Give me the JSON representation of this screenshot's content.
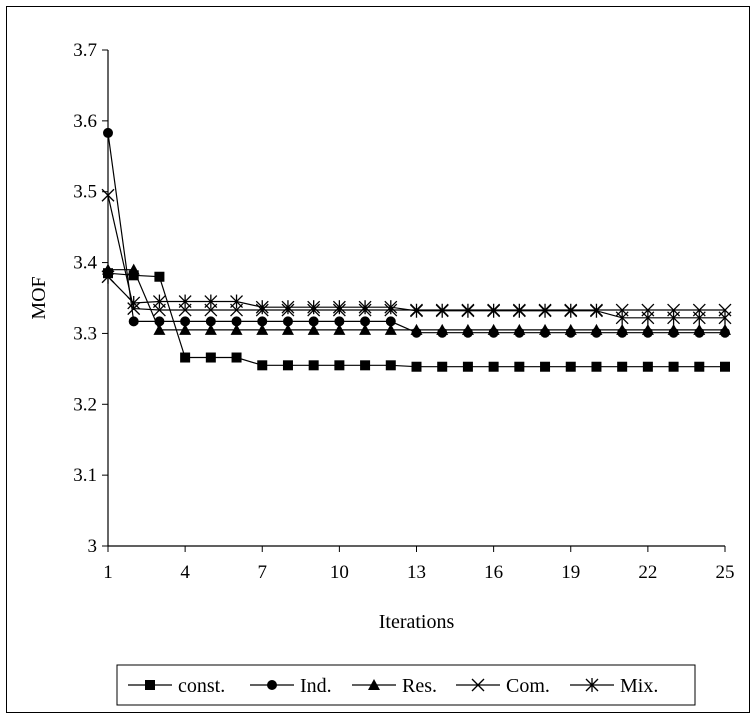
{
  "chart_data": {
    "type": "line",
    "xlabel": "Iterations",
    "ylabel": "MOF",
    "xlim": [
      1,
      25
    ],
    "ylim": [
      3.0,
      3.7
    ],
    "x_ticks": [
      "1",
      "4",
      "7",
      "10",
      "13",
      "16",
      "19",
      "22",
      "25"
    ],
    "y_ticks": [
      "3",
      "3.1",
      "3.2",
      "3.3",
      "3.4",
      "3.5",
      "3.6",
      "3.7"
    ],
    "grid": false,
    "legend_position": "bottom",
    "x": [
      1,
      2,
      3,
      4,
      5,
      6,
      7,
      8,
      9,
      10,
      11,
      12,
      13,
      14,
      15,
      16,
      17,
      18,
      19,
      20,
      21,
      22,
      23,
      24,
      25
    ],
    "series": [
      {
        "name": "const.",
        "marker": "square",
        "values": [
          3.385,
          3.382,
          3.38,
          3.266,
          3.266,
          3.266,
          3.255,
          3.255,
          3.255,
          3.255,
          3.255,
          3.255,
          3.253,
          3.253,
          3.253,
          3.253,
          3.253,
          3.253,
          3.253,
          3.253,
          3.253,
          3.253,
          3.253,
          3.253,
          3.253
        ]
      },
      {
        "name": "Ind.",
        "marker": "circle",
        "values": [
          3.583,
          3.317,
          3.317,
          3.317,
          3.317,
          3.317,
          3.317,
          3.317,
          3.317,
          3.317,
          3.317,
          3.317,
          3.301,
          3.301,
          3.301,
          3.301,
          3.301,
          3.301,
          3.301,
          3.301,
          3.301,
          3.301,
          3.301,
          3.301,
          3.301
        ]
      },
      {
        "name": "Res.",
        "marker": "triangle",
        "values": [
          3.39,
          3.39,
          3.305,
          3.305,
          3.305,
          3.305,
          3.305,
          3.305,
          3.305,
          3.305,
          3.305,
          3.305,
          3.305,
          3.305,
          3.305,
          3.305,
          3.305,
          3.305,
          3.305,
          3.305,
          3.305,
          3.305,
          3.305,
          3.305,
          3.305
        ]
      },
      {
        "name": "Com.",
        "marker": "x",
        "values": [
          3.495,
          3.335,
          3.333,
          3.333,
          3.333,
          3.333,
          3.333,
          3.333,
          3.333,
          3.333,
          3.333,
          3.333,
          3.333,
          3.333,
          3.333,
          3.333,
          3.333,
          3.333,
          3.333,
          3.333,
          3.333,
          3.333,
          3.333,
          3.333,
          3.333
        ]
      },
      {
        "name": "Mix.",
        "marker": "star",
        "values": [
          3.38,
          3.343,
          3.345,
          3.345,
          3.345,
          3.345,
          3.337,
          3.337,
          3.337,
          3.337,
          3.337,
          3.337,
          3.332,
          3.332,
          3.332,
          3.332,
          3.332,
          3.332,
          3.332,
          3.332,
          3.322,
          3.322,
          3.322,
          3.322,
          3.322
        ]
      }
    ]
  }
}
